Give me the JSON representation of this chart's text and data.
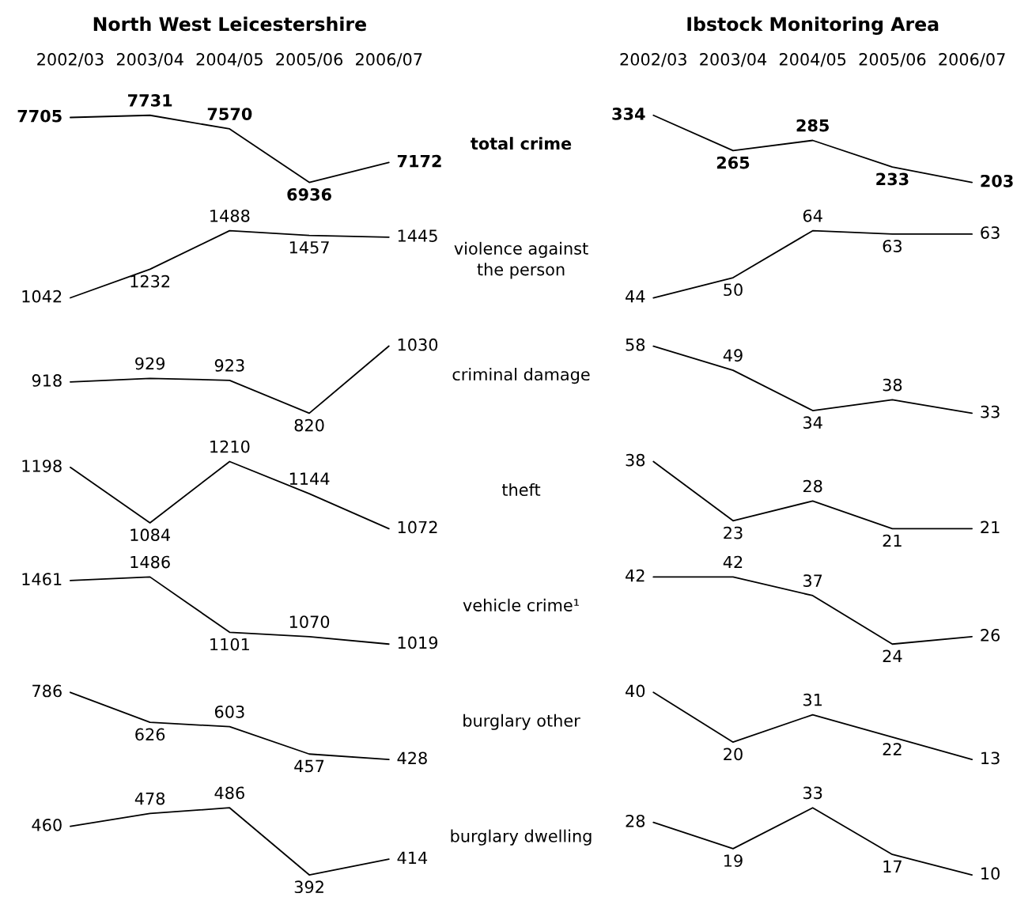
{
  "chart_data": [
    {
      "type": "line",
      "title": "North West Leicestershire",
      "categories": [
        "2002/03",
        "2003/04",
        "2004/05",
        "2005/06",
        "2006/07"
      ],
      "values": [
        7705,
        7731,
        7570,
        6936,
        7172
      ],
      "color": "#000000",
      "data_labels": true,
      "tick_labels": "x",
      "annotations": [
        "total crime"
      ]
    },
    {
      "type": "line",
      "categories": [
        null,
        null,
        null,
        null,
        null
      ],
      "values": [
        1042,
        1232,
        1488,
        1457,
        1445
      ],
      "color": "#000000",
      "data_labels": true,
      "tick_labels": false,
      "annotations": [
        "violence against\nthe person"
      ]
    },
    {
      "type": "line",
      "categories": [
        null,
        null,
        null,
        null,
        null
      ],
      "values": [
        918,
        929,
        923,
        820,
        1030
      ],
      "color": "#000000",
      "data_labels": true,
      "tick_labels": false,
      "annotations": [
        "criminal damage"
      ]
    },
    {
      "type": "line",
      "categories": [
        null,
        null,
        null,
        null,
        null
      ],
      "values": [
        1198,
        1084,
        1210,
        1144,
        1072
      ],
      "color": "#000000",
      "data_labels": true,
      "tick_labels": false,
      "annotations": [
        "theft"
      ]
    },
    {
      "type": "line",
      "categories": [
        null,
        null,
        null,
        null,
        null
      ],
      "values": [
        1461,
        1486,
        1101,
        1070,
        1019
      ],
      "color": "#000000",
      "data_labels": true,
      "tick_labels": false,
      "annotations": [
        "vehicle crime¹"
      ]
    },
    {
      "type": "line",
      "categories": [
        null,
        null,
        null,
        null,
        null
      ],
      "values": [
        786,
        626,
        603,
        457,
        428
      ],
      "color": "#000000",
      "data_labels": true,
      "tick_labels": false,
      "annotations": [
        "burglary other"
      ]
    },
    {
      "type": "line",
      "categories": [
        null,
        null,
        null,
        null,
        null
      ],
      "values": [
        460,
        478,
        486,
        392,
        414
      ],
      "color": "#000000",
      "data_labels": true,
      "tick_labels": false,
      "annotations": [
        "burglary dwelling"
      ]
    },
    {
      "type": "line",
      "title": "Ibstock Monitoring Area",
      "categories": [
        "2002/03",
        "2003/04",
        "2004/05",
        "2005/06",
        "2006/07"
      ],
      "values": [
        334,
        265,
        285,
        233,
        203
      ],
      "color": "#000000",
      "data_labels": true,
      "tick_labels": "x"
    },
    {
      "type": "line",
      "categories": [
        null,
        null,
        null,
        null,
        null
      ],
      "values": [
        44,
        50,
        64,
        63,
        63
      ],
      "color": "#000000",
      "data_labels": true,
      "tick_labels": false
    },
    {
      "type": "line",
      "categories": [
        null,
        null,
        null,
        null,
        null
      ],
      "values": [
        58,
        49,
        34,
        38,
        33
      ],
      "color": "#000000",
      "data_labels": true,
      "tick_labels": false
    },
    {
      "type": "line",
      "categories": [
        null,
        null,
        null,
        null,
        null
      ],
      "values": [
        38,
        23,
        28,
        21,
        21
      ],
      "color": "#000000",
      "data_labels": true,
      "tick_labels": false
    },
    {
      "type": "line",
      "categories": [
        null,
        null,
        null,
        null,
        null
      ],
      "values": [
        42,
        42,
        37,
        24,
        26
      ],
      "color": "#000000",
      "data_labels": true,
      "tick_labels": false
    },
    {
      "type": "line",
      "categories": [
        null,
        null,
        null,
        null,
        null
      ],
      "values": [
        40,
        20,
        31,
        22,
        13
      ],
      "color": "#000000",
      "data_labels": true,
      "tick_labels": false
    },
    {
      "type": "line",
      "categories": [
        null,
        null,
        null,
        null,
        null
      ],
      "values": [
        28,
        19,
        33,
        17,
        10
      ],
      "color": "#000000",
      "data_labels": true,
      "tick_labels": false
    }
  ]
}
